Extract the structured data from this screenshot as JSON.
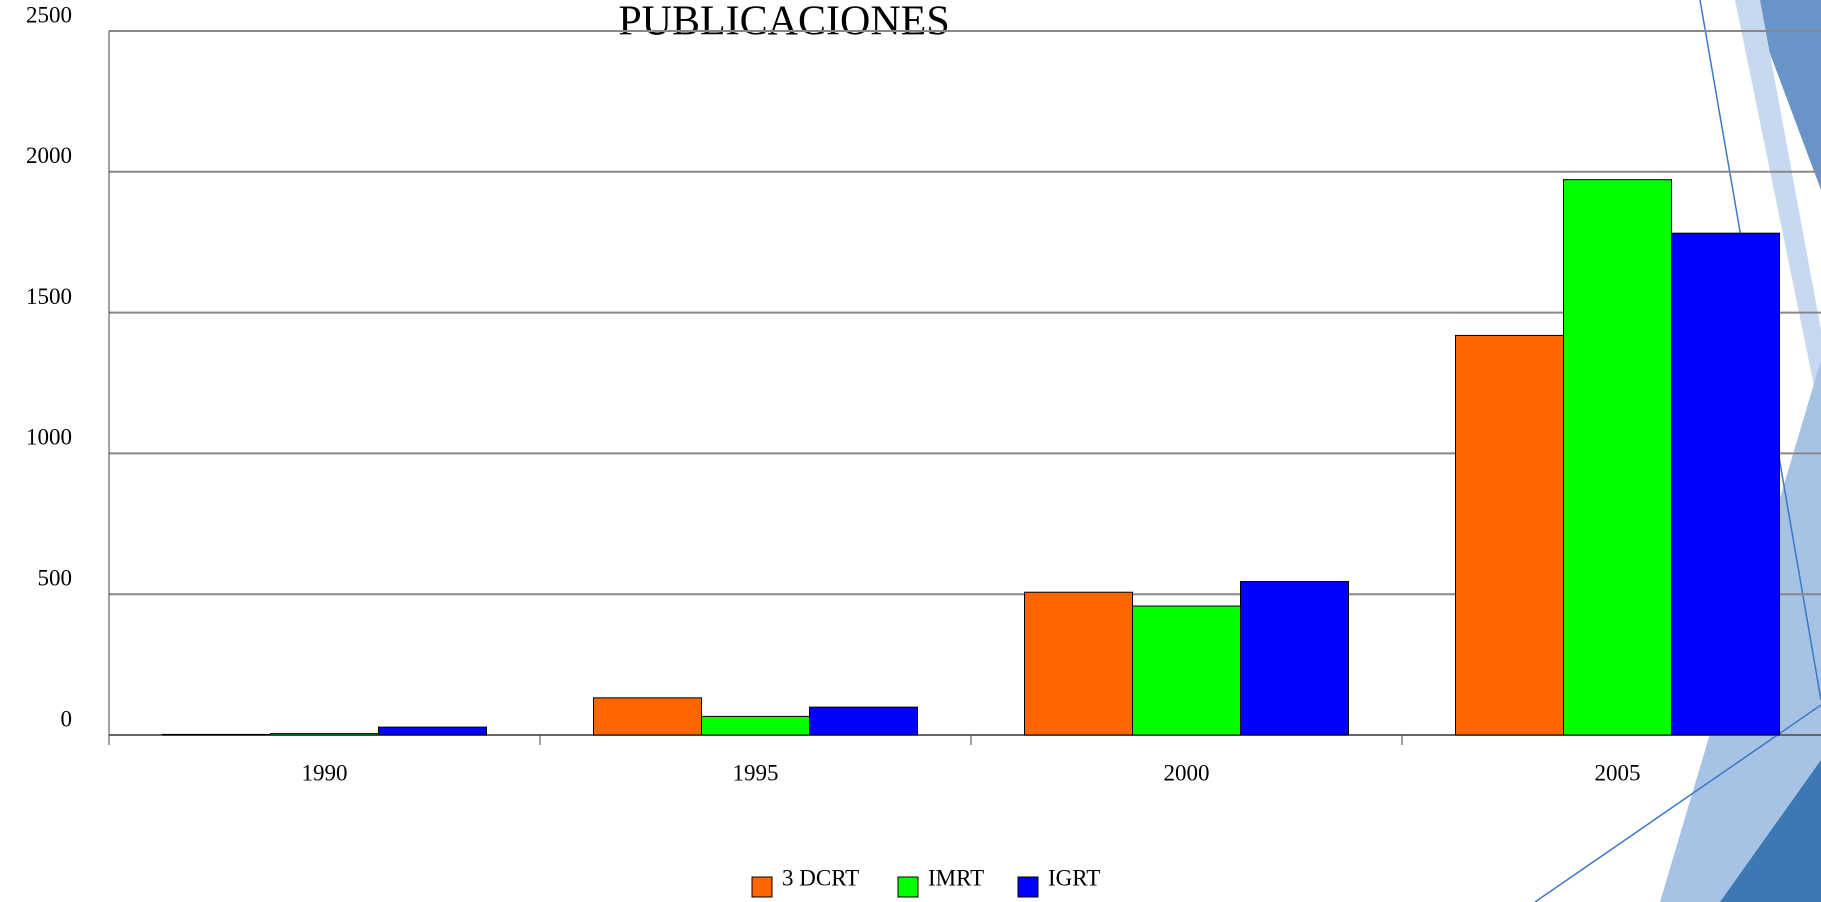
{
  "chart_data": {
    "type": "bar",
    "title": "PUBLICACIONES",
    "categories": [
      "1990",
      "1995",
      "2000",
      "2005"
    ],
    "series": [
      {
        "name": "3 DCRT",
        "color": "#ff6600",
        "values": [
          2,
          132,
          507,
          1419
        ]
      },
      {
        "name": "IMRT",
        "color": "#00ff00",
        "values": [
          5,
          66,
          458,
          1972
        ]
      },
      {
        "name": "IGRT",
        "color": "#0000ff",
        "values": [
          28,
          99,
          545,
          1782
        ]
      }
    ],
    "ylim": [
      0,
      2500
    ],
    "yticks": [
      0,
      500,
      1000,
      1500,
      2000,
      2500
    ],
    "grid": true,
    "legend": "bottom"
  }
}
